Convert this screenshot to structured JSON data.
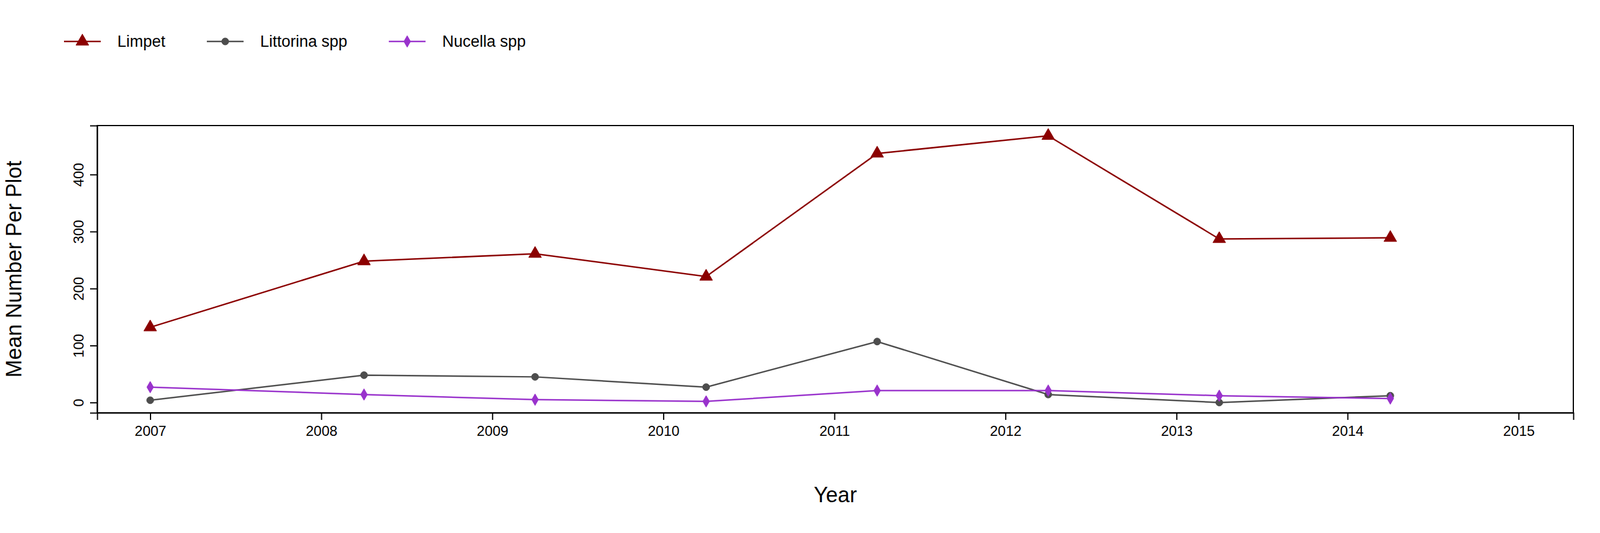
{
  "chart_data": {
    "type": "line",
    "x_label": "Year",
    "y_label": "Mean Number Per Plot",
    "x": [
      2007,
      2008.25,
      2009.25,
      2010.25,
      2011.25,
      2012.25,
      2013.25,
      2014.25
    ],
    "series": [
      {
        "name": "Limpet",
        "color": "#8b0000",
        "marker": "triangle",
        "values": [
          132,
          248,
          261,
          221,
          437,
          468,
          287,
          289
        ]
      },
      {
        "name": "Littorina spp",
        "color": "#4d4d4d",
        "marker": "circle",
        "values": [
          4,
          48,
          45,
          27,
          107,
          14,
          0,
          12
        ]
      },
      {
        "name": "Nucella spp",
        "color": "#9932cc",
        "marker": "diamond",
        "values": [
          27,
          14,
          5,
          2,
          21,
          21,
          12,
          7
        ]
      }
    ],
    "xlim": [
      2006.69,
      2015.32
    ],
    "xticks": [
      2007,
      2008,
      2009,
      2010,
      2011,
      2012,
      2013,
      2014,
      2015
    ],
    "ylim": [
      -18,
      486
    ],
    "yticks": [
      0,
      100,
      200,
      300,
      400
    ],
    "legend": "top-left",
    "grid": false
  }
}
